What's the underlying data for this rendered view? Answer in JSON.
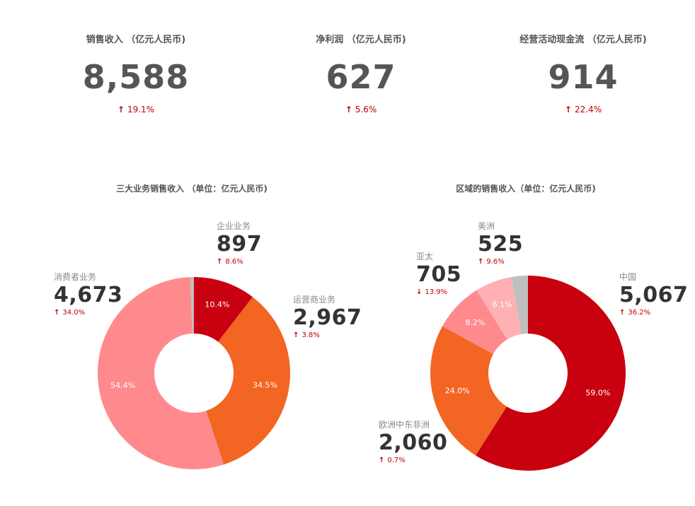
{
  "kpis": [
    {
      "title": "销售收入 （亿元人民币)",
      "value": "8,588",
      "change": "19.1%",
      "direction": "up"
    },
    {
      "title": "净利润 （亿元人民币)",
      "value": "627",
      "change": "5.6%",
      "direction": "up"
    },
    {
      "title": "经营活动现金流 （亿元人民币)",
      "value": "914",
      "change": "22.4%",
      "direction": "up"
    }
  ],
  "icons": {
    "up": "↑",
    "down": "↓"
  },
  "chart_data": [
    {
      "type": "pie",
      "title": "三大业务销售收入 （单位：亿元人民币)",
      "slices": [
        {
          "name": "企业业务",
          "value": 897,
          "value_label": "897",
          "percent": 10.4,
          "percent_label": "10.4%",
          "change": "8.6%",
          "direction": "up",
          "color": "#c8000f"
        },
        {
          "name": "运营商业务",
          "value": 2967,
          "value_label": "2,967",
          "percent": 34.5,
          "percent_label": "34.5%",
          "change": "3.8%",
          "direction": "up",
          "color": "#f26522"
        },
        {
          "name": "消费者业务",
          "value": 4673,
          "value_label": "4,673",
          "percent": 54.4,
          "percent_label": "54.4%",
          "change": "34.0%",
          "direction": "up",
          "color": "#ff8a8e"
        },
        {
          "name": "",
          "value": 51,
          "percent": 0.6,
          "color": "#bfbfbf"
        }
      ]
    },
    {
      "type": "pie",
      "title": "区域的销售收入（单位：亿元人民币)",
      "slices": [
        {
          "name": "中国",
          "value": 5067,
          "value_label": "5,067",
          "percent": 59.0,
          "percent_label": "59.0%",
          "change": "36.2%",
          "direction": "up",
          "color": "#c8000f"
        },
        {
          "name": "欧洲中东非洲",
          "value": 2060,
          "value_label": "2,060",
          "percent": 24.0,
          "percent_label": "24.0%",
          "change": "0.7%",
          "direction": "up",
          "color": "#f26522"
        },
        {
          "name": "亚太",
          "value": 705,
          "value_label": "705",
          "percent": 8.2,
          "percent_label": "8.2%",
          "change": "13.9%",
          "direction": "down",
          "color": "#ff8a8e"
        },
        {
          "name": "美洲",
          "value": 525,
          "value_label": "525",
          "percent": 6.1,
          "percent_label": "6.1%",
          "change": "9.6%",
          "direction": "up",
          "color": "#ffb0b3"
        },
        {
          "name": "",
          "value": 231,
          "percent": 2.7,
          "color": "#bfbfbf"
        }
      ]
    }
  ]
}
